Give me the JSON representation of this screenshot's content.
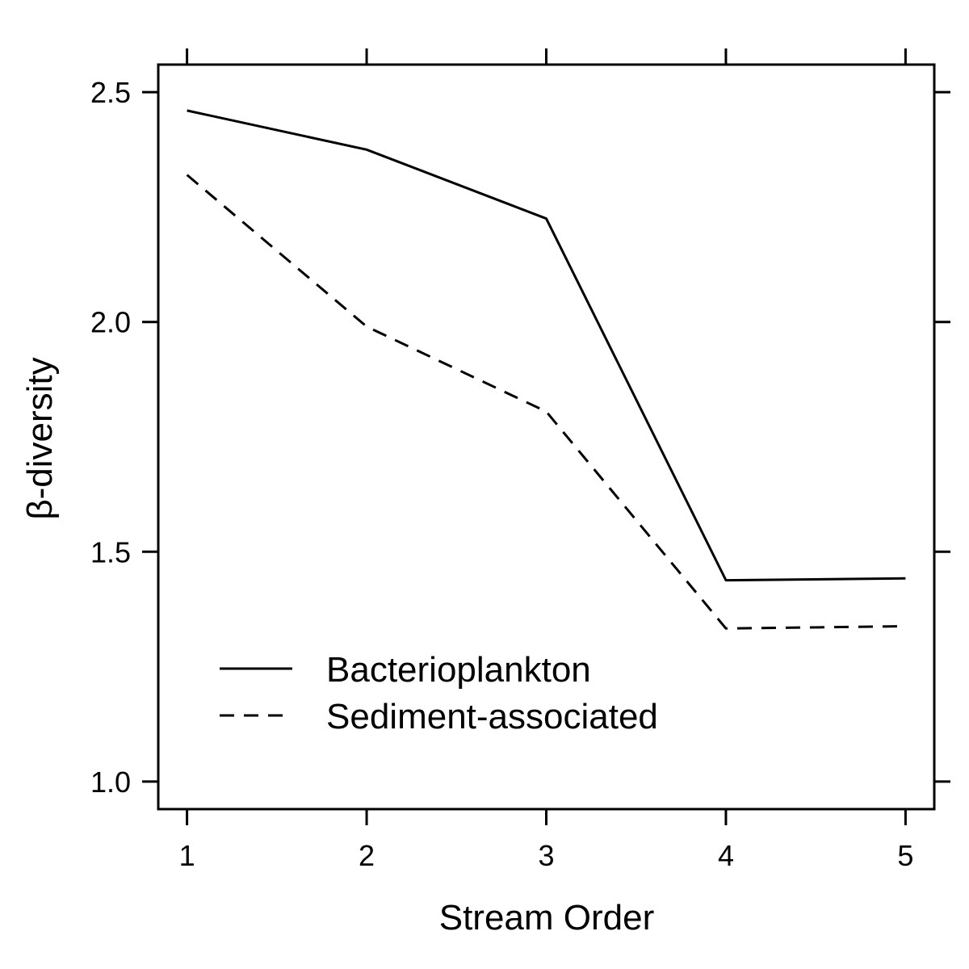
{
  "chart_data": {
    "type": "line",
    "title": "",
    "xlabel": "Stream Order",
    "ylabel": "β-diversity",
    "x": [
      1,
      2,
      3,
      4,
      5
    ],
    "xticks": [
      "1",
      "2",
      "3",
      "4",
      "5"
    ],
    "yticks": [
      "1.0",
      "1.5",
      "2.0",
      "2.5"
    ],
    "xlim": [
      0.84,
      5.16
    ],
    "ylim": [
      0.94,
      2.56
    ],
    "grid": false,
    "legend_position": "bottom-left",
    "series": [
      {
        "name": "Bacterioplankton",
        "style": "solid",
        "values": [
          2.46,
          2.375,
          2.225,
          1.438,
          1.442
        ]
      },
      {
        "name": "Sediment-associated",
        "style": "dashed",
        "values": [
          2.32,
          1.99,
          1.805,
          1.333,
          1.338
        ]
      }
    ]
  }
}
